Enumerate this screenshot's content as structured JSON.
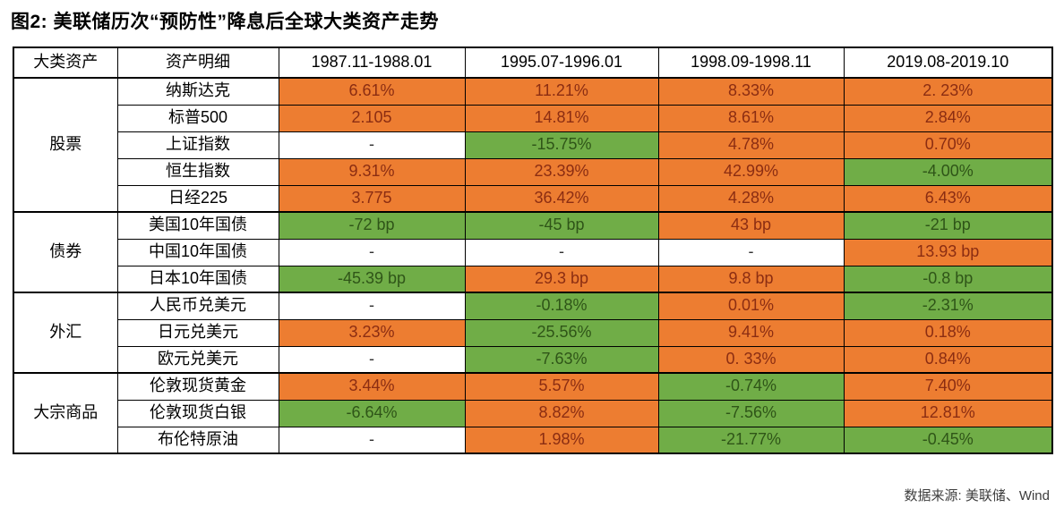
{
  "title": "图2: 美联储历次“预防性”降息后全球大类资产走势",
  "source": "数据来源: 美联储、Wind",
  "colors": {
    "positive_bg": "#ED7D31",
    "positive_text": "#8B2D12",
    "negative_bg": "#70AD47",
    "negative_text": "#2F5518",
    "neutral_bg": "#FFFFFF",
    "border": "#000000"
  },
  "table": {
    "headers": [
      "大类资产",
      "资产明细",
      "1987.11-1988.01",
      "1995.07-1996.01",
      "1998.09-1998.11",
      "2019.08-2019.10"
    ],
    "groups": [
      {
        "name": "股票",
        "rows": [
          {
            "label": "纳斯达克",
            "cells": [
              {
                "text": "6.61%",
                "tone": "pos"
              },
              {
                "text": "11.21%",
                "tone": "pos"
              },
              {
                "text": "8.33%",
                "tone": "pos"
              },
              {
                "text": "2. 23%",
                "tone": "pos"
              }
            ]
          },
          {
            "label": "标普500",
            "cells": [
              {
                "text": "2.105",
                "tone": "pos"
              },
              {
                "text": "14.81%",
                "tone": "pos"
              },
              {
                "text": "8.61%",
                "tone": "pos"
              },
              {
                "text": "2.84%",
                "tone": "pos"
              }
            ]
          },
          {
            "label": "上证指数",
            "cells": [
              {
                "text": "-",
                "tone": "none"
              },
              {
                "text": "-15.75%",
                "tone": "neg"
              },
              {
                "text": "4.78%",
                "tone": "pos"
              },
              {
                "text": "0.70%",
                "tone": "pos"
              }
            ]
          },
          {
            "label": "恒生指数",
            "cells": [
              {
                "text": "9.31%",
                "tone": "pos"
              },
              {
                "text": "23.39%",
                "tone": "pos"
              },
              {
                "text": "42.99%",
                "tone": "pos"
              },
              {
                "text": "-4.00%",
                "tone": "neg"
              }
            ]
          },
          {
            "label": "日经225",
            "cells": [
              {
                "text": "3.775",
                "tone": "pos"
              },
              {
                "text": "36.42%",
                "tone": "pos"
              },
              {
                "text": "4.28%",
                "tone": "pos"
              },
              {
                "text": "6.43%",
                "tone": "pos"
              }
            ]
          }
        ]
      },
      {
        "name": "债券",
        "rows": [
          {
            "label": "美国10年国债",
            "cells": [
              {
                "text": "-72 bp",
                "tone": "neg"
              },
              {
                "text": "-45 bp",
                "tone": "neg"
              },
              {
                "text": "43 bp",
                "tone": "pos"
              },
              {
                "text": "-21 bp",
                "tone": "neg"
              }
            ]
          },
          {
            "label": "中国10年国债",
            "cells": [
              {
                "text": "-",
                "tone": "none"
              },
              {
                "text": "-",
                "tone": "none"
              },
              {
                "text": "-",
                "tone": "none"
              },
              {
                "text": "13.93 bp",
                "tone": "pos"
              }
            ]
          },
          {
            "label": "日本10年国债",
            "cells": [
              {
                "text": "-45.39 bp",
                "tone": "neg"
              },
              {
                "text": "29.3 bp",
                "tone": "pos"
              },
              {
                "text": "9.8 bp",
                "tone": "pos"
              },
              {
                "text": "-0.8 bp",
                "tone": "neg"
              }
            ]
          }
        ]
      },
      {
        "name": "外汇",
        "rows": [
          {
            "label": "人民币兑美元",
            "cells": [
              {
                "text": "-",
                "tone": "none"
              },
              {
                "text": "-0.18%",
                "tone": "neg"
              },
              {
                "text": "0.01%",
                "tone": "pos"
              },
              {
                "text": "-2.31%",
                "tone": "neg"
              }
            ]
          },
          {
            "label": "日元兑美元",
            "cells": [
              {
                "text": "3.23%",
                "tone": "pos"
              },
              {
                "text": "-25.56%",
                "tone": "neg"
              },
              {
                "text": "9.41%",
                "tone": "pos"
              },
              {
                "text": "0.18%",
                "tone": "pos"
              }
            ]
          },
          {
            "label": "欧元兑美元",
            "cells": [
              {
                "text": "-",
                "tone": "none"
              },
              {
                "text": "-7.63%",
                "tone": "neg"
              },
              {
                "text": "0. 33%",
                "tone": "pos"
              },
              {
                "text": "0.84%",
                "tone": "pos"
              }
            ]
          }
        ]
      },
      {
        "name": "大宗商品",
        "rows": [
          {
            "label": "伦敦现货黄金",
            "cells": [
              {
                "text": "3.44%",
                "tone": "pos"
              },
              {
                "text": "5.57%",
                "tone": "pos"
              },
              {
                "text": "-0.74%",
                "tone": "neg"
              },
              {
                "text": "7.40%",
                "tone": "pos"
              }
            ]
          },
          {
            "label": "伦敦现货白银",
            "cells": [
              {
                "text": "-6.64%",
                "tone": "neg"
              },
              {
                "text": "8.82%",
                "tone": "pos"
              },
              {
                "text": "-7.56%",
                "tone": "neg"
              },
              {
                "text": "12.81%",
                "tone": "pos"
              }
            ]
          },
          {
            "label": "布伦特原油",
            "cells": [
              {
                "text": "-",
                "tone": "none"
              },
              {
                "text": "1.98%",
                "tone": "pos"
              },
              {
                "text": "-21.77%",
                "tone": "neg"
              },
              {
                "text": "-0.45%",
                "tone": "neg"
              }
            ]
          }
        ]
      }
    ]
  },
  "chart_data": {
    "type": "table",
    "title": "图2: 美联储历次“预防性”降息后全球大类资产走势",
    "columns": [
      "大类资产",
      "资产明细",
      "1987.11-1988.01",
      "1995.07-1996.01",
      "1998.09-1998.11",
      "2019.08-2019.10"
    ],
    "rows": [
      [
        "股票",
        "纳斯达克",
        "6.61%",
        "11.21%",
        "8.33%",
        "2. 23%"
      ],
      [
        "股票",
        "标普500",
        "2.105",
        "14.81%",
        "8.61%",
        "2.84%"
      ],
      [
        "股票",
        "上证指数",
        "-",
        "-15.75%",
        "4.78%",
        "0.70%"
      ],
      [
        "股票",
        "恒生指数",
        "9.31%",
        "23.39%",
        "42.99%",
        "-4.00%"
      ],
      [
        "股票",
        "日经225",
        "3.775",
        "36.42%",
        "4.28%",
        "6.43%"
      ],
      [
        "债券",
        "美国10年国债",
        "-72 bp",
        "-45 bp",
        "43 bp",
        "-21 bp"
      ],
      [
        "债券",
        "中国10年国债",
        "-",
        "-",
        "-",
        "13.93 bp"
      ],
      [
        "债券",
        "日本10年国债",
        "-45.39 bp",
        "29.3 bp",
        "9.8 bp",
        "-0.8 bp"
      ],
      [
        "外汇",
        "人民币兑美元",
        "-",
        "-0.18%",
        "0.01%",
        "-2.31%"
      ],
      [
        "外汇",
        "日元兑美元",
        "3.23%",
        "-25.56%",
        "9.41%",
        "0.18%"
      ],
      [
        "外汇",
        "欧元兑美元",
        "-",
        "-7.63%",
        "0. 33%",
        "0.84%"
      ],
      [
        "大宗商品",
        "伦敦现货黄金",
        "3.44%",
        "5.57%",
        "-0.74%",
        "7.40%"
      ],
      [
        "大宗商品",
        "伦敦现货白银",
        "-6.64%",
        "8.82%",
        "-7.56%",
        "12.81%"
      ],
      [
        "大宗商品",
        "布伦特原油",
        "-",
        "1.98%",
        "-21.77%",
        "-0.45%"
      ]
    ],
    "legend": {
      "orange_cells": "positive change (rise)",
      "green_cells": "negative change (fall)",
      "white_cells": "no data"
    }
  }
}
